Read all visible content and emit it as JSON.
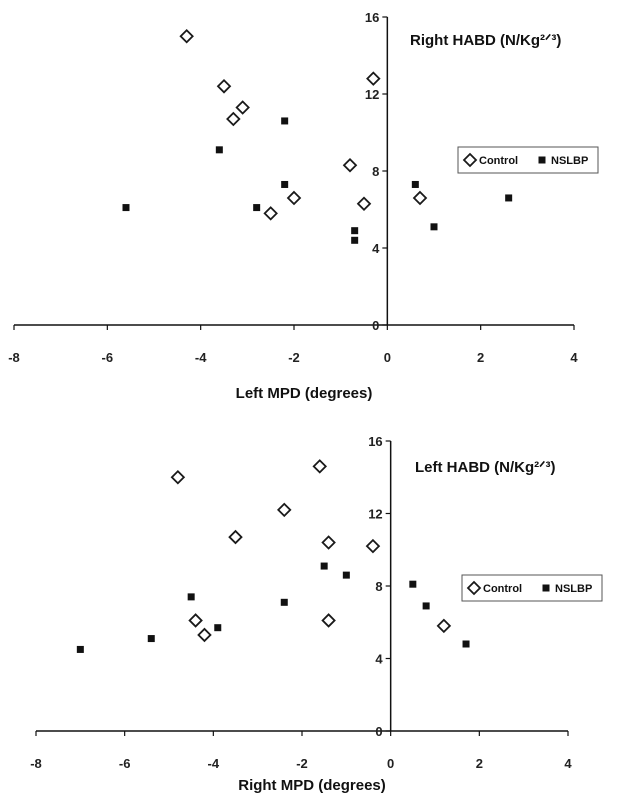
{
  "chart_data": [
    {
      "type": "scatter",
      "title": "Right HABD (N/Kg²ᐟ³)",
      "xlabel": "Left MPD (degrees)",
      "ylabel": "",
      "xlim": [
        -8,
        4
      ],
      "ylim": [
        0,
        16
      ],
      "xticks": [
        "-8",
        "-6",
        "-4",
        "-2",
        "0",
        "2",
        "4"
      ],
      "yticks": [
        "0",
        "4",
        "8",
        "12",
        "16"
      ],
      "grid": false,
      "legend_position": "right",
      "series": [
        {
          "name": "Control",
          "marker": "diamond-open",
          "color": "#1a1a1a",
          "points": [
            {
              "x": -4.3,
              "y": 15.0
            },
            {
              "x": -3.5,
              "y": 12.4
            },
            {
              "x": -3.1,
              "y": 11.3
            },
            {
              "x": -3.3,
              "y": 10.7
            },
            {
              "x": -0.3,
              "y": 12.8
            },
            {
              "x": -0.8,
              "y": 8.3
            },
            {
              "x": -2.0,
              "y": 6.6
            },
            {
              "x": -2.5,
              "y": 5.8
            },
            {
              "x": -0.5,
              "y": 6.3
            },
            {
              "x": 0.7,
              "y": 6.6
            }
          ]
        },
        {
          "name": "NSLBP",
          "marker": "square-filled",
          "color": "#111111",
          "points": [
            {
              "x": -5.6,
              "y": 6.1
            },
            {
              "x": -3.6,
              "y": 9.1
            },
            {
              "x": -2.2,
              "y": 10.6
            },
            {
              "x": -2.2,
              "y": 7.3
            },
            {
              "x": -2.8,
              "y": 6.1
            },
            {
              "x": -0.7,
              "y": 4.9
            },
            {
              "x": -0.7,
              "y": 4.4
            },
            {
              "x": 0.6,
              "y": 7.3
            },
            {
              "x": 1.0,
              "y": 5.1
            },
            {
              "x": 2.6,
              "y": 6.6
            }
          ]
        }
      ]
    },
    {
      "type": "scatter",
      "title": "Left HABD (N/Kg²ᐟ³)",
      "xlabel": "Right MPD (degrees)",
      "ylabel": "",
      "xlim": [
        -8,
        4
      ],
      "ylim": [
        0,
        16
      ],
      "xticks": [
        "-8",
        "-6",
        "-4",
        "-2",
        "0",
        "2",
        "4"
      ],
      "yticks": [
        "0",
        "4",
        "8",
        "12",
        "16"
      ],
      "grid": false,
      "legend_position": "right",
      "series": [
        {
          "name": "Control",
          "marker": "diamond-open",
          "color": "#1a1a1a",
          "points": [
            {
              "x": -4.8,
              "y": 14.0
            },
            {
              "x": -1.6,
              "y": 14.6
            },
            {
              "x": -2.4,
              "y": 12.2
            },
            {
              "x": -3.5,
              "y": 10.7
            },
            {
              "x": -1.4,
              "y": 10.4
            },
            {
              "x": -0.4,
              "y": 10.2
            },
            {
              "x": -4.4,
              "y": 6.1
            },
            {
              "x": -4.2,
              "y": 5.3
            },
            {
              "x": -1.4,
              "y": 6.1
            },
            {
              "x": 1.2,
              "y": 5.8
            }
          ]
        },
        {
          "name": "NSLBP",
          "marker": "square-filled",
          "color": "#111111",
          "points": [
            {
              "x": -7.0,
              "y": 4.5
            },
            {
              "x": -5.4,
              "y": 5.1
            },
            {
              "x": -4.5,
              "y": 7.4
            },
            {
              "x": -3.9,
              "y": 5.7
            },
            {
              "x": -2.4,
              "y": 7.1
            },
            {
              "x": -1.5,
              "y": 9.1
            },
            {
              "x": -1.0,
              "y": 8.6
            },
            {
              "x": 0.5,
              "y": 8.1
            },
            {
              "x": 0.8,
              "y": 6.9
            },
            {
              "x": 1.7,
              "y": 4.8
            }
          ]
        }
      ]
    }
  ]
}
